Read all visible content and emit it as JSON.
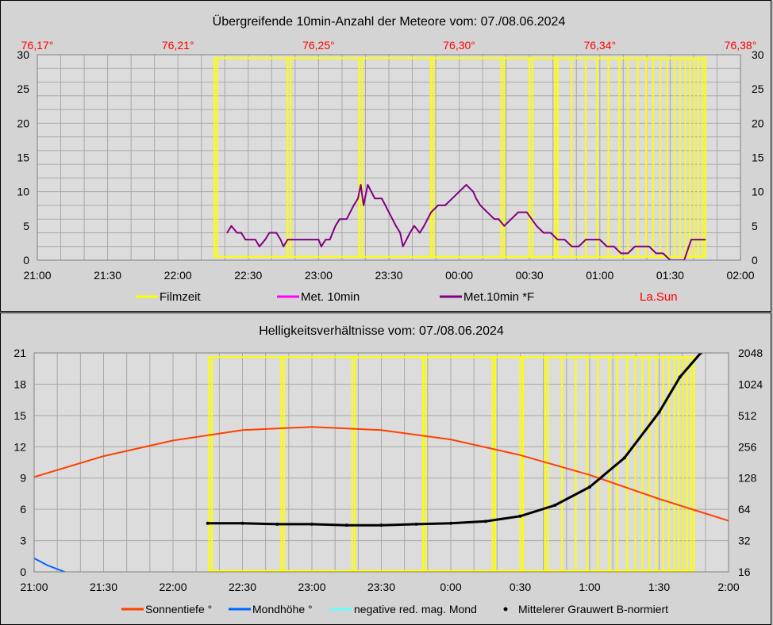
{
  "chart_data": [
    {
      "type": "line",
      "title": "Übergreifende 10min-Anzahl der Meteore vom: 07./08.06.2024",
      "xlabel": "",
      "ylabel": "",
      "x_ticks": [
        "21:00",
        "21:30",
        "22:00",
        "22:30",
        "23:00",
        "23:30",
        "00:00",
        "00:30",
        "01:00",
        "01:30",
        "02:00"
      ],
      "xlim_hours": [
        21.0,
        26.0
      ],
      "ylim": [
        0,
        30
      ],
      "y_ticks": [
        "0",
        "5",
        "10",
        "15",
        "20",
        "25",
        "30"
      ],
      "solar_longitude_ticks": [
        "76,17°",
        "76,21°",
        "76,25°",
        "76,30°",
        "76,34°",
        "76,38°"
      ],
      "grid": true,
      "legend_position": "bottom",
      "legend": [
        {
          "label": "Filmzeit",
          "color": "#ffff00"
        },
        {
          "label": "Met. 10min",
          "color": "#ff00ff"
        },
        {
          "label": "Met.10min *F",
          "color": "#800080"
        },
        {
          "label": "La.Sun",
          "color": "#ff0000"
        }
      ],
      "filmzeit": {
        "y_top": 29.5,
        "y_bottom": 0.5,
        "span_hours": [
          22.26,
          25.75
        ],
        "boundaries_hours": [
          22.26,
          22.28,
          22.78,
          22.8,
          23.29,
          23.31,
          23.8,
          23.82,
          24.3,
          24.32,
          24.5,
          24.52,
          24.68,
          24.7,
          24.8,
          24.9,
          24.98,
          25.06,
          25.14,
          25.2,
          25.27,
          25.33,
          25.38,
          25.43,
          25.48,
          25.53,
          25.57,
          25.61,
          25.64,
          25.67,
          25.7,
          25.73,
          25.75
        ]
      },
      "series": [
        {
          "name": "Met.10min *F",
          "color": "#800080",
          "points": [
            [
              22.35,
              4
            ],
            [
              22.38,
              5
            ],
            [
              22.42,
              4
            ],
            [
              22.45,
              4
            ],
            [
              22.48,
              3
            ],
            [
              22.55,
              3
            ],
            [
              22.58,
              2
            ],
            [
              22.62,
              3
            ],
            [
              22.65,
              4
            ],
            [
              22.7,
              4
            ],
            [
              22.73,
              3
            ],
            [
              22.75,
              2
            ],
            [
              22.78,
              3
            ],
            [
              22.8,
              3
            ],
            [
              22.85,
              3
            ],
            [
              22.9,
              3
            ],
            [
              22.95,
              3
            ],
            [
              23.0,
              3
            ],
            [
              23.02,
              2
            ],
            [
              23.05,
              3
            ],
            [
              23.08,
              3
            ],
            [
              23.12,
              5
            ],
            [
              23.15,
              6
            ],
            [
              23.2,
              6
            ],
            [
              23.25,
              8
            ],
            [
              23.28,
              9
            ],
            [
              23.3,
              11
            ],
            [
              23.32,
              8
            ],
            [
              23.35,
              11
            ],
            [
              23.4,
              9
            ],
            [
              23.45,
              9
            ],
            [
              23.5,
              7
            ],
            [
              23.55,
              5
            ],
            [
              23.58,
              4
            ],
            [
              23.6,
              2
            ],
            [
              23.65,
              4
            ],
            [
              23.68,
              5
            ],
            [
              23.72,
              4
            ],
            [
              23.75,
              5
            ],
            [
              23.8,
              7
            ],
            [
              23.85,
              8
            ],
            [
              23.9,
              8
            ],
            [
              23.95,
              9
            ],
            [
              24.0,
              10
            ],
            [
              24.05,
              11
            ],
            [
              24.1,
              10
            ],
            [
              24.12,
              9
            ],
            [
              24.15,
              8
            ],
            [
              24.2,
              7
            ],
            [
              24.25,
              6
            ],
            [
              24.28,
              6
            ],
            [
              24.32,
              5
            ],
            [
              24.37,
              6
            ],
            [
              24.42,
              7
            ],
            [
              24.48,
              7
            ],
            [
              24.55,
              5
            ],
            [
              24.6,
              4
            ],
            [
              24.65,
              4
            ],
            [
              24.7,
              3
            ],
            [
              24.75,
              3
            ],
            [
              24.8,
              2
            ],
            [
              24.85,
              2
            ],
            [
              24.9,
              3
            ],
            [
              24.95,
              3
            ],
            [
              25.0,
              3
            ],
            [
              25.05,
              2
            ],
            [
              25.1,
              2
            ],
            [
              25.15,
              1
            ],
            [
              25.2,
              1
            ],
            [
              25.25,
              2
            ],
            [
              25.3,
              2
            ],
            [
              25.35,
              2
            ],
            [
              25.4,
              1
            ],
            [
              25.45,
              1
            ],
            [
              25.5,
              0
            ],
            [
              25.55,
              0
            ],
            [
              25.6,
              0
            ],
            [
              25.65,
              3
            ],
            [
              25.7,
              3
            ],
            [
              25.75,
              3
            ]
          ]
        }
      ]
    },
    {
      "type": "line",
      "title": "Helligkeitsverhältnisse vom: 07./08.06.2024",
      "xlabel": "",
      "ylabel": "",
      "x_ticks": [
        "21:00",
        "21:30",
        "22:00",
        "22:30",
        "23:00",
        "23:30",
        "0:00",
        "0:30",
        "1:00",
        "1:30",
        "2:00"
      ],
      "xlim_hours": [
        21.0,
        26.0
      ],
      "ylim": [
        0,
        21
      ],
      "y_ticks": [
        "0",
        "3",
        "6",
        "9",
        "12",
        "15",
        "18",
        "21"
      ],
      "y2_scale": "log2",
      "y2lim": [
        16,
        2048
      ],
      "y2_ticks": [
        "16",
        "32",
        "64",
        "128",
        "256",
        "512",
        "1024",
        "2048"
      ],
      "grid": true,
      "legend_position": "bottom",
      "legend": [
        {
          "label": "Sonnentiefe °",
          "color": "#ff4000"
        },
        {
          "label": "Mondhöhe °",
          "color": "#0066ff"
        },
        {
          "label": "negative red. mag. Mond",
          "color": "#66ffff"
        },
        {
          "label": "Mittelerer Grauwert B-normiert",
          "color": "#000000"
        }
      ],
      "filmzeit": {
        "y_top": 20.6,
        "y_bottom": 0.1,
        "span_hours": [
          22.26,
          25.75
        ],
        "boundaries_hours": [
          22.26,
          22.28,
          22.78,
          22.8,
          23.29,
          23.31,
          23.8,
          23.82,
          24.3,
          24.32,
          24.5,
          24.52,
          24.68,
          24.7,
          24.8,
          24.9,
          24.98,
          25.06,
          25.14,
          25.2,
          25.27,
          25.33,
          25.38,
          25.43,
          25.48,
          25.53,
          25.57,
          25.61,
          25.64,
          25.67,
          25.7,
          25.73,
          25.75
        ]
      },
      "series": [
        {
          "name": "Sonnentiefe °",
          "color": "#ff4000",
          "axis": "left",
          "points": [
            [
              21.0,
              9.1
            ],
            [
              21.5,
              11.1
            ],
            [
              22.0,
              12.6
            ],
            [
              22.5,
              13.6
            ],
            [
              23.0,
              13.9
            ],
            [
              23.5,
              13.6
            ],
            [
              24.0,
              12.7
            ],
            [
              24.5,
              11.2
            ],
            [
              25.0,
              9.3
            ],
            [
              25.5,
              7.0
            ],
            [
              26.0,
              4.9
            ]
          ]
        },
        {
          "name": "Mondhöhe °",
          "color": "#0066ff",
          "axis": "left",
          "points": [
            [
              21.0,
              1.3
            ],
            [
              21.1,
              0.6
            ],
            [
              21.22,
              0.0
            ]
          ]
        },
        {
          "name": "Mittelerer Grauwert B-normiert",
          "color": "#000000",
          "axis": "right",
          "points": [
            [
              22.25,
              47
            ],
            [
              22.5,
              47
            ],
            [
              22.75,
              46
            ],
            [
              23.0,
              46
            ],
            [
              23.25,
              45
            ],
            [
              23.5,
              45
            ],
            [
              23.75,
              46
            ],
            [
              24.0,
              47
            ],
            [
              24.25,
              49
            ],
            [
              24.5,
              55
            ],
            [
              24.75,
              70
            ],
            [
              25.0,
              105
            ],
            [
              25.25,
              200
            ],
            [
              25.5,
              550
            ],
            [
              25.65,
              1200
            ],
            [
              25.8,
              2048
            ]
          ]
        }
      ]
    }
  ]
}
